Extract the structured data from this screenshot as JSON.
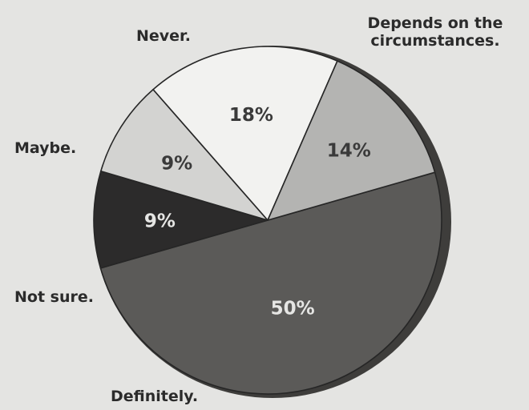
{
  "chart_data": {
    "type": "pie",
    "title": "",
    "slices": [
      {
        "label": "Depends on the\ncircumstances.",
        "value": 50,
        "value_label": "50%",
        "color": "#5b5a58",
        "label_color": "#e6e6e4"
      },
      {
        "label": "Not sure.",
        "value": 9,
        "value_label": "9%",
        "color": "#2c2b2b",
        "label_color": "#e6e6e4"
      },
      {
        "label": "Definitely.",
        "value": 9,
        "value_label": "9%",
        "color": "#d3d3d1",
        "label_color": "#3a3a3a"
      },
      {
        "label": "Maybe.",
        "value": 18,
        "value_label": "18%",
        "color": "#f2f2f0",
        "label_color": "#3a3a3a"
      },
      {
        "label": "Never.",
        "value": 14,
        "value_label": "14%",
        "color": "#b4b4b2",
        "label_color": "#3a3a3a"
      }
    ],
    "legend": "none"
  }
}
